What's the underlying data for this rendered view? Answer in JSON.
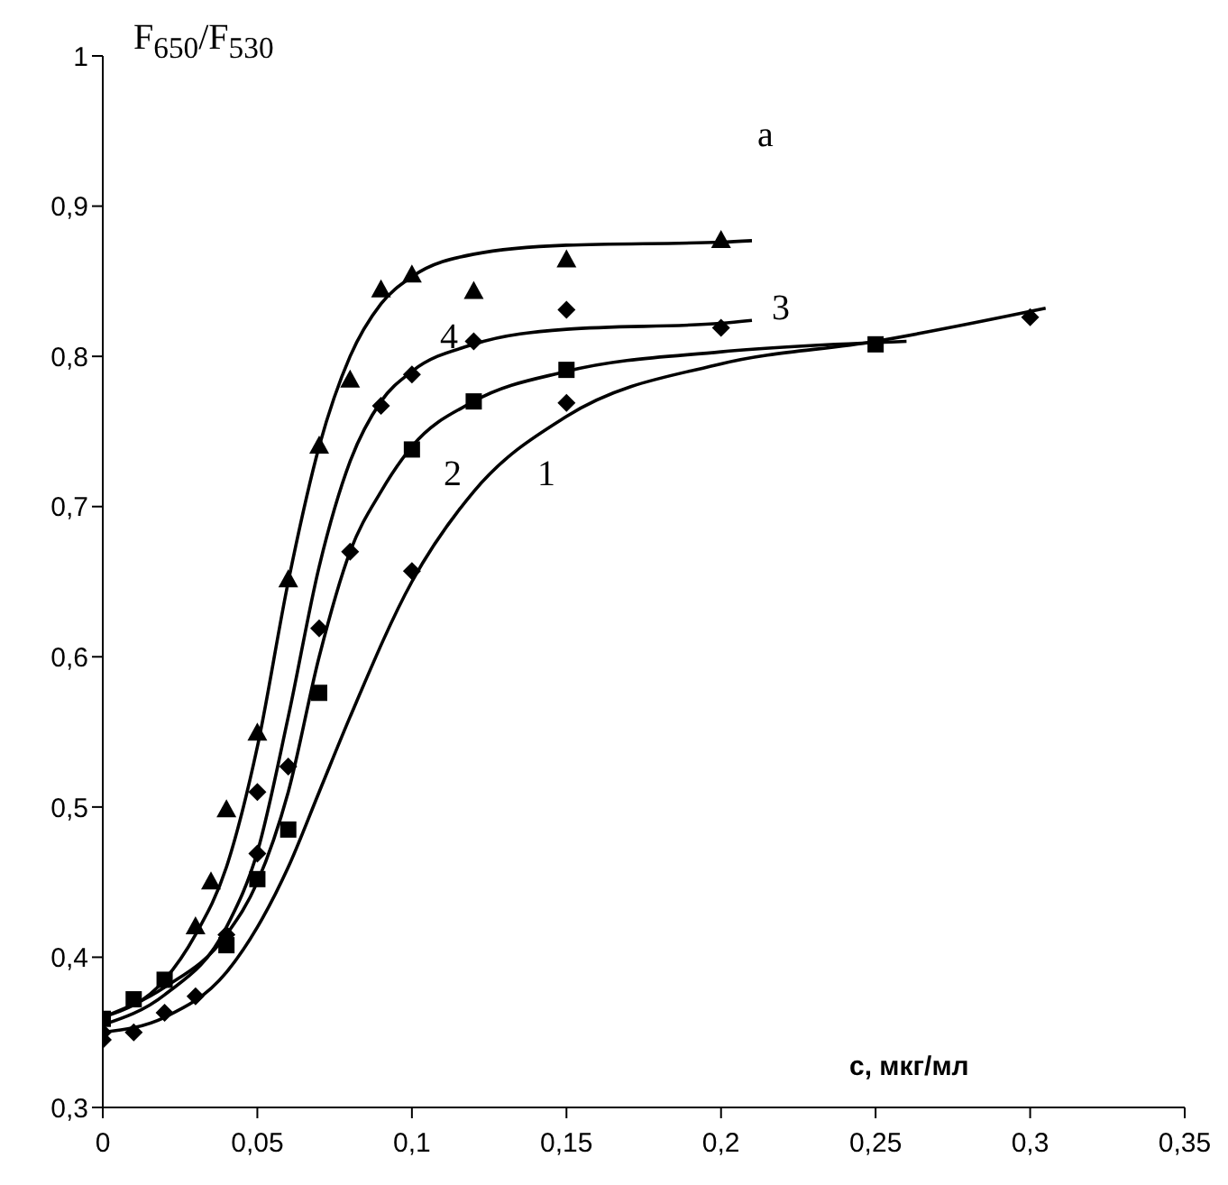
{
  "chart_data": {
    "type": "line",
    "ylabel": "F$_{650}$/F$_{530}$",
    "xlabel": "c, мкг/мл",
    "annotations": [
      "a",
      "1",
      "2",
      "3",
      "4"
    ],
    "xlim": [
      0,
      0.35
    ],
    "xticks": [
      0,
      {
        "value": 0.05,
        "label": "0,05"
      },
      {
        "value": 0.1,
        "label": "0,1"
      },
      {
        "value": 0.15,
        "label": "0,15"
      },
      {
        "value": 0.2,
        "label": "0,2"
      },
      {
        "value": 0.25,
        "label": "0,25"
      },
      {
        "value": 0.3,
        "label": "0,3"
      },
      {
        "value": 0.35,
        "label": "0,35"
      }
    ],
    "ylim": [
      0.3,
      1
    ],
    "yticks": [
      {
        "value": 0.3,
        "label": "0,3"
      },
      {
        "value": 0.4,
        "label": "0,4"
      },
      {
        "value": 0.5,
        "label": "0,5"
      },
      {
        "value": 0.6,
        "label": "0,6"
      },
      {
        "value": 0.7,
        "label": "0,7"
      },
      {
        "value": 0.8,
        "label": "0,8"
      },
      {
        "value": 0.9,
        "label": "0,9"
      },
      1
    ],
    "grid": false,
    "series": [
      {
        "color": "#000000",
        "marker": "none",
        "x": [
          0,
          0.02,
          0.04,
          0.05,
          0.06,
          0.07,
          0.08,
          0.1,
          0.12,
          0.15,
          0.2,
          0.25,
          0.305
        ],
        "values": [
          0.35,
          0.36,
          0.39,
          0.42,
          0.46,
          0.51,
          0.56,
          0.65,
          0.71,
          0.76,
          0.795,
          0.81,
          0.832
        ]
      },
      {
        "color": "#000000",
        "marker": "none",
        "x": [
          0,
          0.02,
          0.04,
          0.05,
          0.06,
          0.07,
          0.08,
          0.09,
          0.1,
          0.12,
          0.15,
          0.2,
          0.26
        ],
        "values": [
          0.36,
          0.38,
          0.415,
          0.45,
          0.51,
          0.6,
          0.67,
          0.71,
          0.74,
          0.77,
          0.79,
          0.803,
          0.81
        ]
      },
      {
        "color": "#000000",
        "marker": "none",
        "x": [
          0,
          0.02,
          0.04,
          0.05,
          0.06,
          0.07,
          0.08,
          0.09,
          0.1,
          0.12,
          0.15,
          0.2,
          0.21
        ],
        "values": [
          0.355,
          0.375,
          0.42,
          0.47,
          0.56,
          0.66,
          0.73,
          0.77,
          0.79,
          0.808,
          0.818,
          0.822,
          0.824
        ]
      },
      {
        "color": "#000000",
        "marker": "none",
        "x": [
          0,
          0.02,
          0.03,
          0.04,
          0.05,
          0.06,
          0.07,
          0.08,
          0.09,
          0.1,
          0.12,
          0.15,
          0.2,
          0.21
        ],
        "values": [
          0.36,
          0.385,
          0.415,
          0.46,
          0.54,
          0.65,
          0.74,
          0.8,
          0.835,
          0.853,
          0.868,
          0.874,
          0.876,
          0.877
        ]
      },
      {
        "type": "scatter",
        "color": "#000000",
        "marker": "diamond",
        "x": [
          0,
          0.01,
          0.02,
          0.03,
          0.05,
          0.1,
          0.15,
          0.3
        ],
        "values": [
          0.345,
          0.35,
          0.363,
          0.374,
          0.469,
          0.657,
          0.769,
          0.826
        ]
      },
      {
        "type": "scatter",
        "color": "#000000",
        "marker": "square",
        "x": [
          0,
          0.01,
          0.02,
          0.04,
          0.05,
          0.06,
          0.07,
          0.1,
          0.12,
          0.15,
          0.25
        ],
        "values": [
          0.359,
          0.372,
          0.385,
          0.408,
          0.452,
          0.485,
          0.576,
          0.738,
          0.77,
          0.791,
          0.808
        ]
      },
      {
        "type": "scatter",
        "color": "#000000",
        "marker": "diamond",
        "x": [
          0,
          0.03,
          0.04,
          0.05,
          0.06,
          0.07,
          0.08,
          0.09,
          0.1,
          0.12,
          0.15,
          0.2
        ],
        "values": [
          0.35,
          null,
          0.415,
          0.51,
          0.527,
          0.619,
          0.67,
          0.767,
          0.788,
          0.81,
          0.831,
          0.819
        ]
      },
      {
        "type": "scatter",
        "color": "#000000",
        "marker": "triangle",
        "x": [
          0.03,
          0.035,
          0.04,
          0.05,
          0.06,
          0.07,
          0.08,
          0.09,
          0.1,
          0.12,
          0.15,
          0.2
        ],
        "values": [
          0.42,
          0.45,
          0.498,
          0.549,
          0.651,
          0.74,
          0.784,
          0.844,
          0.854,
          0.843,
          0.864,
          0.877
        ]
      }
    ]
  }
}
